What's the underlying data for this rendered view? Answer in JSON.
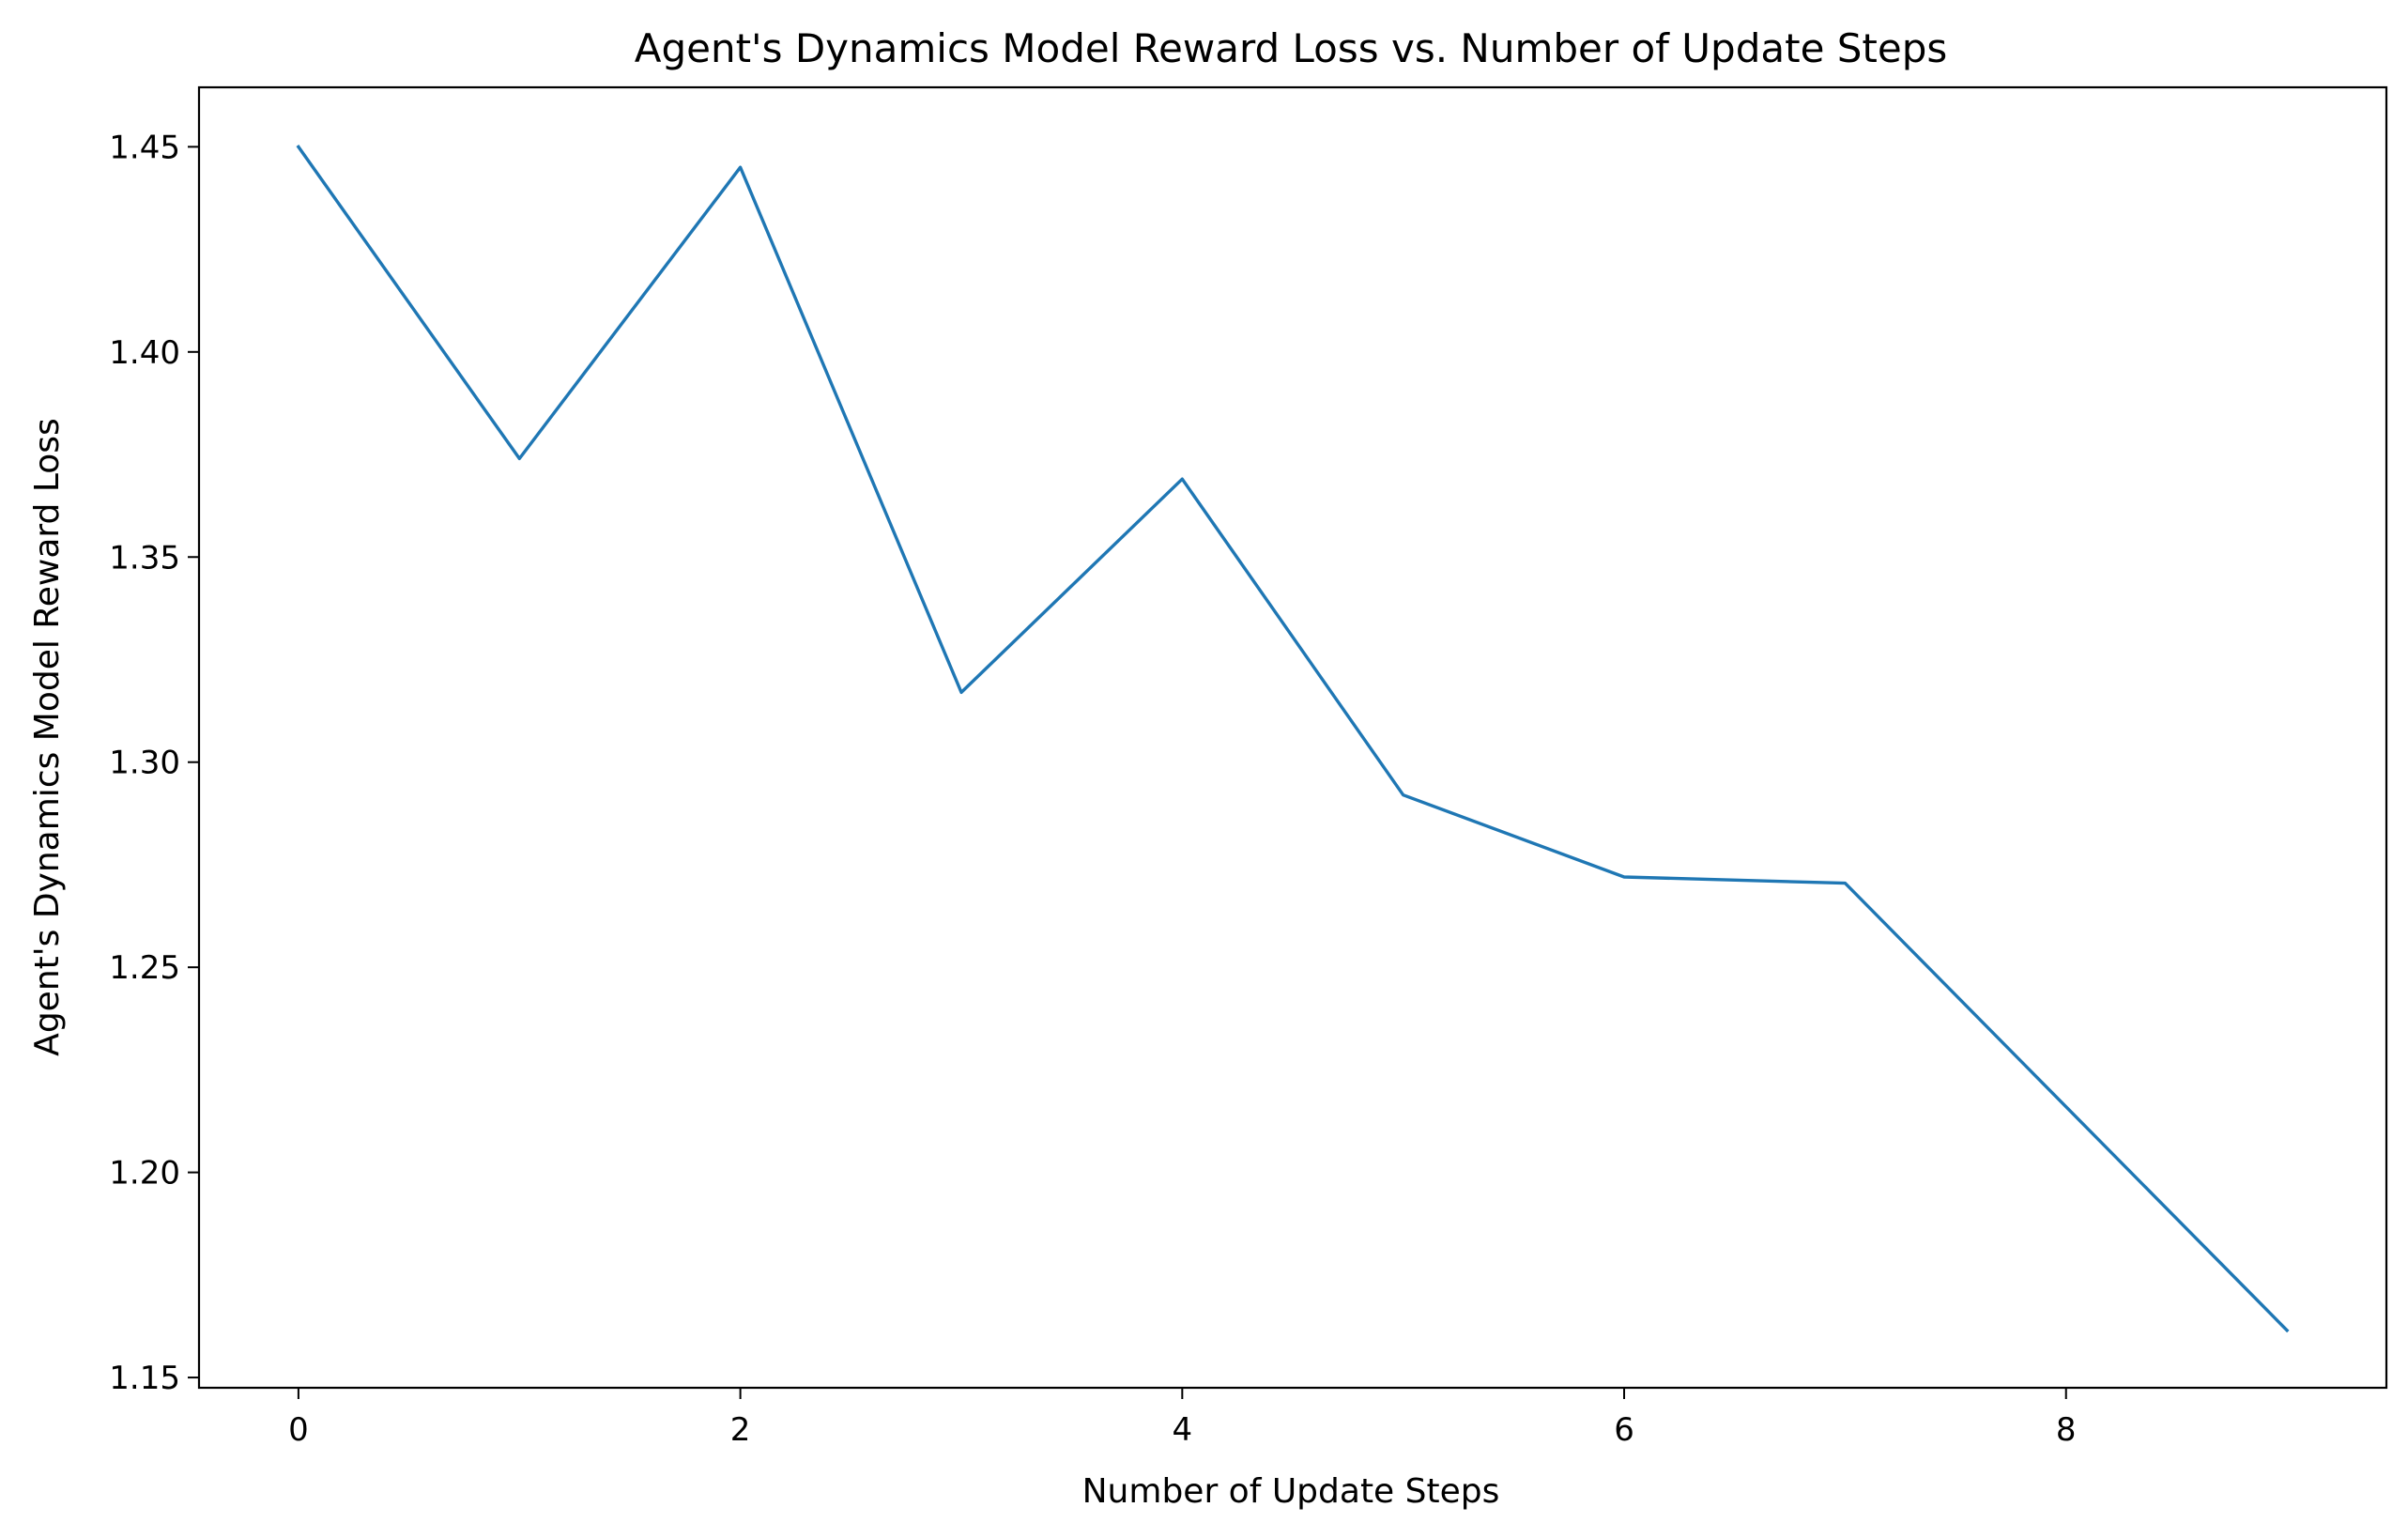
{
  "chart_data": {
    "type": "line",
    "title": "Agent's Dynamics Model Reward Loss vs. Number of Update Steps",
    "xlabel": "Number of Update Steps",
    "ylabel": "Agent's Dynamics Model Reward Loss",
    "x": [
      0,
      1,
      2,
      3,
      4,
      5,
      6,
      7,
      8,
      9
    ],
    "series": [
      {
        "values": [
          1.45,
          1.374,
          1.445,
          1.317,
          1.369,
          1.292,
          1.272,
          1.2705,
          1.216,
          1.1615
        ],
        "color": "#1f77b4"
      }
    ],
    "xlim": [
      -0.45,
      9.45
    ],
    "ylim": [
      1.1475,
      1.4645
    ],
    "xticks": [
      0,
      2,
      4,
      6,
      8
    ],
    "xtick_labels": [
      "0",
      "2",
      "4",
      "6",
      "8"
    ],
    "yticks": [
      1.15,
      1.2,
      1.25,
      1.3,
      1.35,
      1.4,
      1.45
    ],
    "ytick_labels": [
      "1.15",
      "1.20",
      "1.25",
      "1.30",
      "1.35",
      "1.40",
      "1.45"
    ],
    "grid": false,
    "legend": "none"
  }
}
